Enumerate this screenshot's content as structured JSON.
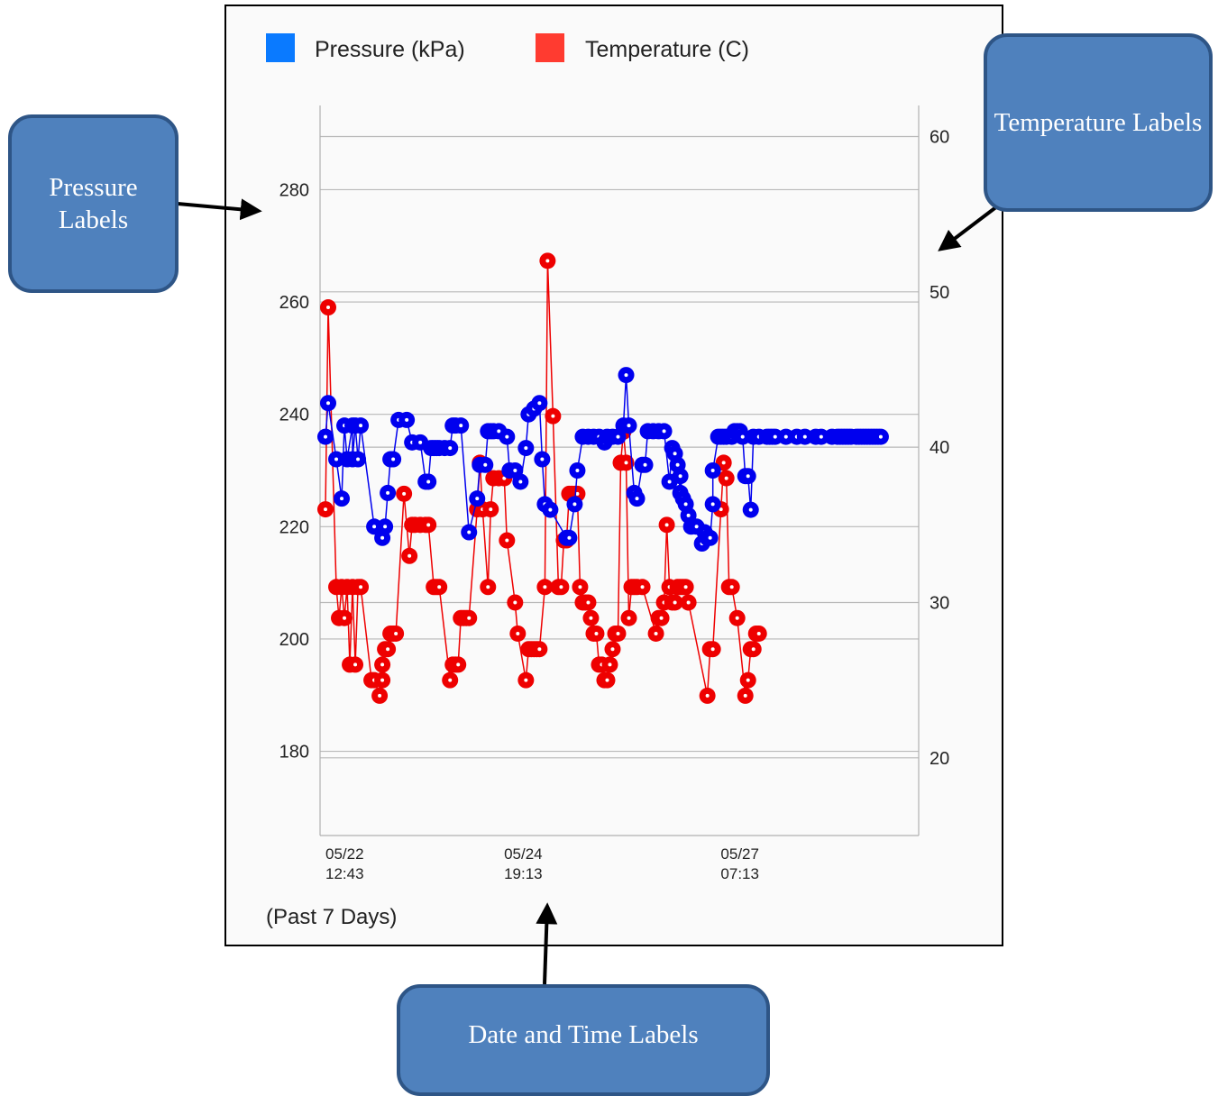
{
  "callouts": {
    "pressure": "Pressure Labels",
    "temperature": "Temperature Labels",
    "datetime": "Date and Time Labels"
  },
  "footer": "(Past 7 Days)",
  "colors": {
    "pressure": "#0000ee",
    "temperature": "#ee0000",
    "legend_pressure": "#0a7aff",
    "legend_temperature": "#ff3b30",
    "callout_fill": "#4f81bd"
  },
  "chart_data": {
    "type": "line",
    "legend": [
      "Pressure (kPa)",
      "Temperature (C)"
    ],
    "legend_position": "top",
    "grid": true,
    "y_left": {
      "ticks": [
        "180",
        "200",
        "220",
        "240",
        "260",
        "280"
      ],
      "range": [
        165,
        295
      ]
    },
    "y_right": {
      "ticks": [
        "20",
        "30",
        "40",
        "50",
        "60"
      ],
      "range": [
        15,
        62
      ]
    },
    "x_ticks": [
      {
        "date": "05/22",
        "time": "12:43",
        "index": 0
      },
      {
        "date": "05/24",
        "time": "19:13",
        "index": 73
      },
      {
        "date": "05/27",
        "time": "07:13",
        "index": 153
      }
    ],
    "x_count": 218,
    "series": [
      {
        "name": "Pressure (kPa)",
        "points": [
          [
            0,
            236
          ],
          [
            1,
            242
          ],
          [
            4,
            232
          ],
          [
            6,
            225
          ],
          [
            7,
            238
          ],
          [
            8,
            232
          ],
          [
            10,
            238
          ],
          [
            10,
            232
          ],
          [
            11,
            238
          ],
          [
            12,
            232
          ],
          [
            13,
            238
          ],
          [
            18,
            220
          ],
          [
            21,
            218
          ],
          [
            22,
            220
          ],
          [
            23,
            226
          ],
          [
            24,
            232
          ],
          [
            25,
            232
          ],
          [
            27,
            239
          ],
          [
            30,
            239
          ],
          [
            32,
            235
          ],
          [
            35,
            235
          ],
          [
            37,
            228
          ],
          [
            38,
            228
          ],
          [
            39,
            234
          ],
          [
            40,
            234
          ],
          [
            41,
            234
          ],
          [
            42,
            234
          ],
          [
            44,
            234
          ],
          [
            46,
            234
          ],
          [
            47,
            238
          ],
          [
            48,
            238
          ],
          [
            50,
            238
          ],
          [
            53,
            219
          ],
          [
            56,
            225
          ],
          [
            57,
            231
          ],
          [
            59,
            231
          ],
          [
            60,
            237
          ],
          [
            61,
            237
          ],
          [
            62,
            237
          ],
          [
            64,
            237
          ],
          [
            67,
            236
          ],
          [
            68,
            230
          ],
          [
            70,
            230
          ],
          [
            72,
            228
          ],
          [
            74,
            234
          ],
          [
            75,
            240
          ],
          [
            77,
            241
          ],
          [
            79,
            242
          ],
          [
            80,
            232
          ],
          [
            81,
            224
          ],
          [
            83,
            223
          ],
          [
            89,
            218
          ],
          [
            90,
            218
          ],
          [
            92,
            224
          ],
          [
            93,
            230
          ],
          [
            95,
            236
          ],
          [
            97,
            236
          ],
          [
            99,
            236
          ],
          [
            101,
            236
          ],
          [
            103,
            235
          ],
          [
            104,
            236
          ],
          [
            106,
            236
          ],
          [
            108,
            236
          ],
          [
            110,
            238
          ],
          [
            111,
            247
          ],
          [
            112,
            238
          ],
          [
            114,
            226
          ],
          [
            115,
            225
          ],
          [
            117,
            231
          ],
          [
            118,
            231
          ],
          [
            119,
            237
          ],
          [
            121,
            237
          ],
          [
            123,
            237
          ],
          [
            125,
            237
          ],
          [
            127,
            228
          ],
          [
            128,
            234
          ],
          [
            129,
            233
          ],
          [
            130,
            231
          ],
          [
            131,
            226
          ],
          [
            131,
            229
          ],
          [
            132,
            225
          ],
          [
            133,
            224
          ],
          [
            134,
            222
          ],
          [
            135,
            220
          ],
          [
            137,
            220
          ],
          [
            139,
            217
          ],
          [
            140,
            219
          ],
          [
            141,
            218
          ],
          [
            142,
            218
          ],
          [
            143,
            224
          ],
          [
            143,
            230
          ],
          [
            145,
            236
          ],
          [
            146,
            236
          ],
          [
            147,
            236
          ],
          [
            148,
            236
          ],
          [
            150,
            236
          ],
          [
            151,
            237
          ],
          [
            152,
            237
          ],
          [
            153,
            237
          ],
          [
            154,
            236
          ],
          [
            155,
            229
          ],
          [
            156,
            229
          ],
          [
            157,
            223
          ],
          [
            158,
            236
          ],
          [
            160,
            236
          ],
          [
            163,
            236
          ],
          [
            164,
            236
          ],
          [
            165,
            236
          ],
          [
            166,
            236
          ],
          [
            170,
            236
          ],
          [
            174,
            236
          ],
          [
            177,
            236
          ],
          [
            181,
            236
          ],
          [
            183,
            236
          ],
          [
            187,
            236
          ],
          [
            189,
            236
          ],
          [
            190,
            236
          ],
          [
            191,
            236
          ],
          [
            192,
            236
          ],
          [
            193,
            236
          ],
          [
            194,
            236
          ],
          [
            196,
            236
          ],
          [
            197,
            236
          ],
          [
            198,
            236
          ],
          [
            199,
            236
          ],
          [
            200,
            236
          ],
          [
            201,
            236
          ],
          [
            202,
            236
          ],
          [
            203,
            236
          ],
          [
            204,
            236
          ],
          [
            205,
            236
          ]
        ]
      },
      {
        "name": "Temperature (C)",
        "points": [
          [
            0,
            36
          ],
          [
            1,
            49
          ],
          [
            4,
            31
          ],
          [
            5,
            29
          ],
          [
            6,
            31
          ],
          [
            7,
            29
          ],
          [
            8,
            31
          ],
          [
            9,
            26
          ],
          [
            10,
            31
          ],
          [
            11,
            26
          ],
          [
            12,
            31
          ],
          [
            13,
            31
          ],
          [
            17,
            25
          ],
          [
            18,
            25
          ],
          [
            20,
            24
          ],
          [
            21,
            25
          ],
          [
            21,
            26
          ],
          [
            22,
            27
          ],
          [
            23,
            27
          ],
          [
            24,
            28
          ],
          [
            25,
            28
          ],
          [
            26,
            28
          ],
          [
            29,
            37
          ],
          [
            31,
            33
          ],
          [
            32,
            35
          ],
          [
            33,
            35
          ],
          [
            35,
            35
          ],
          [
            37,
            35
          ],
          [
            38,
            35
          ],
          [
            40,
            31
          ],
          [
            41,
            31
          ],
          [
            42,
            31
          ],
          [
            46,
            25
          ],
          [
            47,
            26
          ],
          [
            48,
            26
          ],
          [
            49,
            26
          ],
          [
            50,
            29
          ],
          [
            51,
            29
          ],
          [
            52,
            29
          ],
          [
            53,
            29
          ],
          [
            56,
            36
          ],
          [
            57,
            39
          ],
          [
            58,
            36
          ],
          [
            60,
            31
          ],
          [
            61,
            36
          ],
          [
            62,
            38
          ],
          [
            64,
            38
          ],
          [
            66,
            38
          ],
          [
            67,
            34
          ],
          [
            70,
            30
          ],
          [
            71,
            28
          ],
          [
            74,
            25
          ],
          [
            75,
            27
          ],
          [
            76,
            27
          ],
          [
            77,
            27
          ],
          [
            78,
            27
          ],
          [
            79,
            27
          ],
          [
            81,
            31
          ],
          [
            82,
            52
          ],
          [
            84,
            42
          ],
          [
            86,
            31
          ],
          [
            87,
            31
          ],
          [
            88,
            34
          ],
          [
            89,
            34
          ],
          [
            90,
            37
          ],
          [
            91,
            37
          ],
          [
            92,
            37
          ],
          [
            93,
            37
          ],
          [
            94,
            31
          ],
          [
            95,
            30
          ],
          [
            96,
            30
          ],
          [
            97,
            30
          ],
          [
            98,
            29
          ],
          [
            99,
            28
          ],
          [
            100,
            28
          ],
          [
            101,
            26
          ],
          [
            102,
            26
          ],
          [
            103,
            25
          ],
          [
            104,
            25
          ],
          [
            105,
            26
          ],
          [
            106,
            27
          ],
          [
            107,
            28
          ],
          [
            108,
            28
          ],
          [
            109,
            39
          ],
          [
            110,
            41
          ],
          [
            111,
            39
          ],
          [
            112,
            29
          ],
          [
            113,
            31
          ],
          [
            114,
            31
          ],
          [
            115,
            31
          ],
          [
            117,
            31
          ],
          [
            122,
            28
          ],
          [
            123,
            29
          ],
          [
            124,
            29
          ],
          [
            125,
            30
          ],
          [
            126,
            35
          ],
          [
            127,
            31
          ],
          [
            128,
            30
          ],
          [
            129,
            30
          ],
          [
            130,
            31
          ],
          [
            131,
            31
          ],
          [
            132,
            31
          ],
          [
            133,
            31
          ],
          [
            134,
            30
          ],
          [
            141,
            24
          ],
          [
            142,
            27
          ],
          [
            143,
            27
          ],
          [
            146,
            36
          ],
          [
            147,
            39
          ],
          [
            148,
            38
          ],
          [
            149,
            31
          ],
          [
            150,
            31
          ],
          [
            152,
            29
          ],
          [
            155,
            24
          ],
          [
            156,
            25
          ],
          [
            157,
            27
          ],
          [
            158,
            27
          ],
          [
            159,
            28
          ],
          [
            160,
            28
          ]
        ]
      }
    ]
  }
}
